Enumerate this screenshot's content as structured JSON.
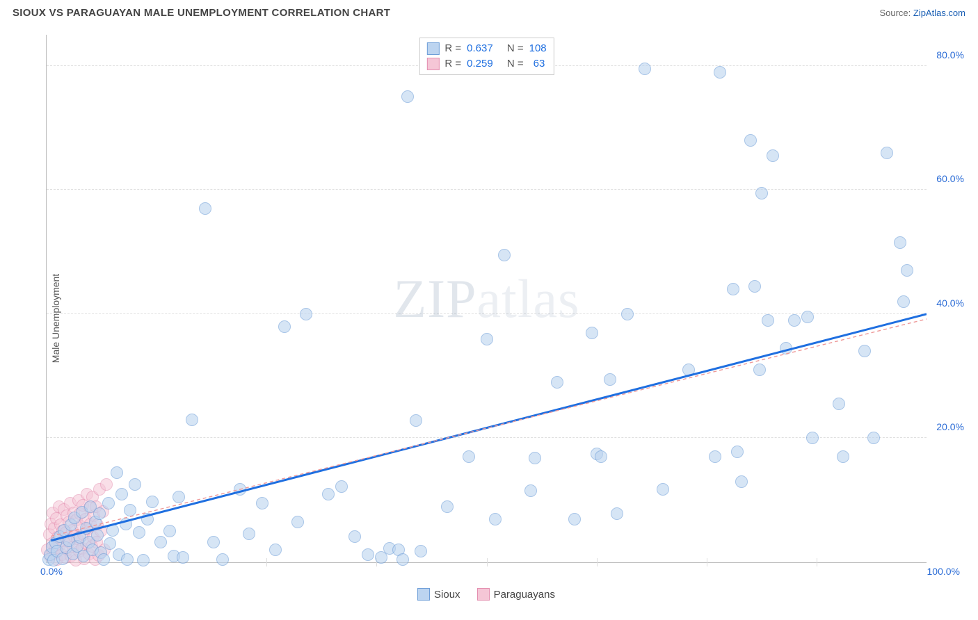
{
  "header": {
    "title": "SIOUX VS PARAGUAYAN MALE UNEMPLOYMENT CORRELATION CHART",
    "source_prefix": "Source: ",
    "source_link": "ZipAtlas.com"
  },
  "watermark": {
    "part1": "ZIP",
    "part2": "atlas"
  },
  "chart": {
    "type": "scatter",
    "ylabel": "Male Unemployment",
    "xlim": [
      0,
      100
    ],
    "ylim": [
      0,
      85
    ],
    "xtick_label_left": "0.0%",
    "xtick_label_right": "100.0%",
    "xticks_minor": [
      25,
      37.5,
      50,
      62.5,
      75,
      87.5
    ],
    "yticks": [
      20,
      40,
      60,
      80
    ],
    "ytick_labels": [
      "20.0%",
      "40.0%",
      "60.0%",
      "80.0%"
    ],
    "background_color": "#ffffff",
    "grid_color": "#e0e0e0",
    "axis_label_color": "#2b6cd6",
    "series": [
      {
        "name": "Sioux",
        "marker_radius": 9,
        "fill": "#bcd4f0",
        "stroke": "#6f9fd8",
        "fill_opacity": 0.6,
        "trend": {
          "color": "#1f6fe0",
          "width": 3,
          "dash": "none",
          "x1": 0.5,
          "y1": 3.5,
          "x2": 100,
          "y2": 40
        },
        "R": "0.637",
        "N": "108",
        "points": [
          [
            0.2,
            0.5
          ],
          [
            0.4,
            1.2
          ],
          [
            0.6,
            2.5
          ],
          [
            0.8,
            0.3
          ],
          [
            1,
            3.1
          ],
          [
            1.2,
            1.8
          ],
          [
            1.5,
            4.2
          ],
          [
            1.8,
            0.6
          ],
          [
            2,
            5.1
          ],
          [
            2.2,
            2.3
          ],
          [
            2.5,
            3.5
          ],
          [
            2.8,
            6.0
          ],
          [
            3,
            1.4
          ],
          [
            3.2,
            7.2
          ],
          [
            3.5,
            2.6
          ],
          [
            3.8,
            4.0
          ],
          [
            4,
            8.1
          ],
          [
            4.2,
            1.0
          ],
          [
            4.5,
            5.5
          ],
          [
            4.8,
            3.2
          ],
          [
            5,
            9.0
          ],
          [
            5.2,
            2.0
          ],
          [
            5.5,
            6.5
          ],
          [
            5.8,
            4.4
          ],
          [
            6,
            7.8
          ],
          [
            6.2,
            1.6
          ],
          [
            6.5,
            0.4
          ],
          [
            7,
            9.5
          ],
          [
            7.2,
            3.0
          ],
          [
            7.5,
            5.2
          ],
          [
            8,
            14.5
          ],
          [
            8.2,
            1.2
          ],
          [
            8.5,
            11.0
          ],
          [
            9,
            6.2
          ],
          [
            9.2,
            0.5
          ],
          [
            9.5,
            8.4
          ],
          [
            10,
            12.5
          ],
          [
            10.5,
            4.8
          ],
          [
            11,
            0.3
          ],
          [
            11.5,
            7.0
          ],
          [
            12,
            9.8
          ],
          [
            13,
            3.2
          ],
          [
            14,
            5.0
          ],
          [
            14.5,
            1.0
          ],
          [
            15,
            10.5
          ],
          [
            15.5,
            0.8
          ],
          [
            16.5,
            23.0
          ],
          [
            18,
            57.0
          ],
          [
            19,
            3.2
          ],
          [
            20,
            0.5
          ],
          [
            22,
            11.8
          ],
          [
            23,
            4.6
          ],
          [
            24.5,
            9.5
          ],
          [
            26,
            2.0
          ],
          [
            27,
            38.0
          ],
          [
            28.5,
            6.5
          ],
          [
            29.5,
            40.0
          ],
          [
            32,
            11.0
          ],
          [
            33.5,
            12.2
          ],
          [
            35,
            4.2
          ],
          [
            36.5,
            1.2
          ],
          [
            38,
            0.8
          ],
          [
            39,
            2.2
          ],
          [
            40,
            2.0
          ],
          [
            40.5,
            0.4
          ],
          [
            41,
            75.0
          ],
          [
            42,
            22.8
          ],
          [
            42.5,
            1.8
          ],
          [
            45.5,
            9.0
          ],
          [
            48,
            17.0
          ],
          [
            50,
            36.0
          ],
          [
            51,
            7.0
          ],
          [
            52,
            49.5
          ],
          [
            55,
            11.5
          ],
          [
            55.5,
            16.8
          ],
          [
            58,
            29.0
          ],
          [
            60,
            7.0
          ],
          [
            62,
            37.0
          ],
          [
            62.5,
            17.5
          ],
          [
            63,
            17.0
          ],
          [
            64,
            29.5
          ],
          [
            64.8,
            7.8
          ],
          [
            66,
            40.0
          ],
          [
            68,
            79.5
          ],
          [
            70,
            11.8
          ],
          [
            73,
            31.0
          ],
          [
            76,
            17.0
          ],
          [
            76.5,
            79.0
          ],
          [
            78,
            44.0
          ],
          [
            78.5,
            17.8
          ],
          [
            79,
            13.0
          ],
          [
            80,
            68.0
          ],
          [
            80.5,
            44.5
          ],
          [
            81,
            31.0
          ],
          [
            81.3,
            59.5
          ],
          [
            82,
            39.0
          ],
          [
            82.5,
            65.5
          ],
          [
            84,
            34.5
          ],
          [
            85,
            39.0
          ],
          [
            86.5,
            39.5
          ],
          [
            87,
            20.0
          ],
          [
            90,
            25.5
          ],
          [
            90.5,
            17.0
          ],
          [
            93,
            34.0
          ],
          [
            94,
            20.0
          ],
          [
            95.5,
            66.0
          ],
          [
            97,
            51.5
          ],
          [
            97.4,
            42.0
          ],
          [
            97.8,
            47.0
          ]
        ]
      },
      {
        "name": "Paraguayans",
        "marker_radius": 9,
        "fill": "#f5c6d6",
        "stroke": "#e48fb0",
        "fill_opacity": 0.55,
        "trend": {
          "color": "#e99",
          "width": 1.4,
          "dash": "5,4",
          "x1": 0.5,
          "y1": 4.2,
          "x2": 100,
          "y2": 39.2
        },
        "R": "0.259",
        "N": "63",
        "points": [
          [
            0.1,
            2.0
          ],
          [
            0.3,
            4.5
          ],
          [
            0.4,
            1.0
          ],
          [
            0.5,
            6.2
          ],
          [
            0.6,
            3.0
          ],
          [
            0.7,
            8.0
          ],
          [
            0.8,
            1.5
          ],
          [
            0.9,
            5.5
          ],
          [
            1.0,
            2.2
          ],
          [
            1.1,
            7.1
          ],
          [
            1.2,
            0.5
          ],
          [
            1.3,
            4.0
          ],
          [
            1.4,
            9.0
          ],
          [
            1.5,
            2.8
          ],
          [
            1.6,
            6.0
          ],
          [
            1.7,
            1.2
          ],
          [
            1.8,
            5.0
          ],
          [
            1.9,
            3.5
          ],
          [
            2.0,
            8.5
          ],
          [
            2.1,
            0.8
          ],
          [
            2.2,
            4.8
          ],
          [
            2.3,
            7.5
          ],
          [
            2.4,
            2.0
          ],
          [
            2.5,
            6.5
          ],
          [
            2.6,
            3.2
          ],
          [
            2.7,
            9.5
          ],
          [
            2.8,
            1.0
          ],
          [
            2.9,
            5.2
          ],
          [
            3.0,
            2.5
          ],
          [
            3.1,
            8.0
          ],
          [
            3.2,
            4.2
          ],
          [
            3.3,
            0.3
          ],
          [
            3.4,
            6.8
          ],
          [
            3.5,
            3.8
          ],
          [
            3.6,
            10.0
          ],
          [
            3.7,
            1.8
          ],
          [
            3.8,
            7.8
          ],
          [
            3.9,
            5.8
          ],
          [
            4.0,
            2.2
          ],
          [
            4.1,
            9.2
          ],
          [
            4.2,
            4.5
          ],
          [
            4.3,
            0.6
          ],
          [
            4.4,
            7.0
          ],
          [
            4.5,
            3.0
          ],
          [
            4.6,
            11.0
          ],
          [
            4.7,
            5.4
          ],
          [
            4.8,
            1.4
          ],
          [
            4.9,
            8.8
          ],
          [
            5.0,
            6.2
          ],
          [
            5.1,
            2.6
          ],
          [
            5.2,
            10.5
          ],
          [
            5.3,
            4.0
          ],
          [
            5.4,
            7.5
          ],
          [
            5.5,
            0.4
          ],
          [
            5.6,
            9.0
          ],
          [
            5.7,
            3.3
          ],
          [
            5.8,
            6.0
          ],
          [
            5.9,
            1.1
          ],
          [
            6.0,
            11.8
          ],
          [
            6.2,
            5.0
          ],
          [
            6.4,
            8.2
          ],
          [
            6.6,
            2.0
          ],
          [
            6.8,
            12.5
          ]
        ]
      }
    ],
    "legend_top_labels": {
      "R": "R =",
      "N": "N ="
    },
    "legend_bottom": [
      "Sioux",
      "Paraguayans"
    ]
  }
}
